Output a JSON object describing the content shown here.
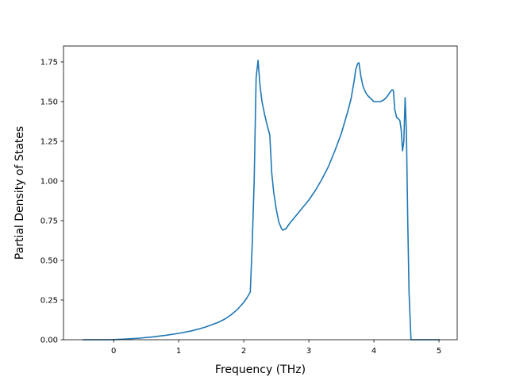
{
  "chart_data": {
    "type": "line",
    "title": "",
    "xlabel": "Frequency (THz)",
    "ylabel": "Partial Density of States",
    "xlim": [
      -0.77,
      5.28
    ],
    "ylim": [
      0.0,
      1.85
    ],
    "xticks": [
      0,
      1,
      2,
      3,
      4,
      5
    ],
    "xtick_labels": [
      "0",
      "1",
      "2",
      "3",
      "4",
      "5"
    ],
    "yticks": [
      0.0,
      0.25,
      0.5,
      0.75,
      1.0,
      1.25,
      1.5,
      1.75
    ],
    "ytick_labels": [
      "0.00",
      "0.25",
      "0.50",
      "0.75",
      "1.00",
      "1.25",
      "1.50",
      "1.75"
    ],
    "grid": false,
    "legend": false,
    "colors": {
      "series": "#1f77b4",
      "axes": "#000000"
    },
    "series": [
      {
        "x": [
          -0.47,
          -0.3,
          -0.1,
          0.0,
          0.2,
          0.4,
          0.6,
          0.8,
          1.0,
          1.2,
          1.4,
          1.6,
          1.7,
          1.8,
          1.9,
          2.0,
          2.05,
          2.1,
          2.13,
          2.16,
          2.19,
          2.22,
          2.25,
          2.28,
          2.32,
          2.36,
          2.4,
          2.43,
          2.46,
          2.5,
          2.54,
          2.58,
          2.6,
          2.65,
          2.7,
          2.8,
          2.9,
          3.0,
          3.1,
          3.2,
          3.3,
          3.4,
          3.5,
          3.6,
          3.65,
          3.7,
          3.72,
          3.75,
          3.77,
          3.8,
          3.83,
          3.87,
          3.9,
          3.95,
          4.0,
          4.05,
          4.1,
          4.15,
          4.2,
          4.25,
          4.28,
          4.3,
          4.32,
          4.35,
          4.38,
          4.4,
          4.42,
          4.44,
          4.46,
          4.48,
          4.5,
          4.52,
          4.54,
          4.57,
          4.6,
          4.8,
          5.0
        ],
        "y": [
          0.0,
          0.0,
          0.0,
          0.001,
          0.005,
          0.01,
          0.018,
          0.028,
          0.04,
          0.056,
          0.078,
          0.108,
          0.128,
          0.155,
          0.19,
          0.235,
          0.265,
          0.3,
          0.6,
          1.0,
          1.65,
          1.76,
          1.6,
          1.5,
          1.42,
          1.35,
          1.29,
          1.05,
          0.93,
          0.82,
          0.74,
          0.7,
          0.69,
          0.7,
          0.73,
          0.78,
          0.83,
          0.88,
          0.94,
          1.01,
          1.09,
          1.19,
          1.3,
          1.44,
          1.52,
          1.64,
          1.7,
          1.74,
          1.745,
          1.66,
          1.6,
          1.56,
          1.54,
          1.52,
          1.5,
          1.5,
          1.5,
          1.51,
          1.53,
          1.56,
          1.575,
          1.57,
          1.45,
          1.4,
          1.39,
          1.38,
          1.32,
          1.19,
          1.25,
          1.525,
          1.3,
          0.75,
          0.3,
          0.0,
          0.0,
          0.0,
          0.0
        ]
      }
    ]
  }
}
